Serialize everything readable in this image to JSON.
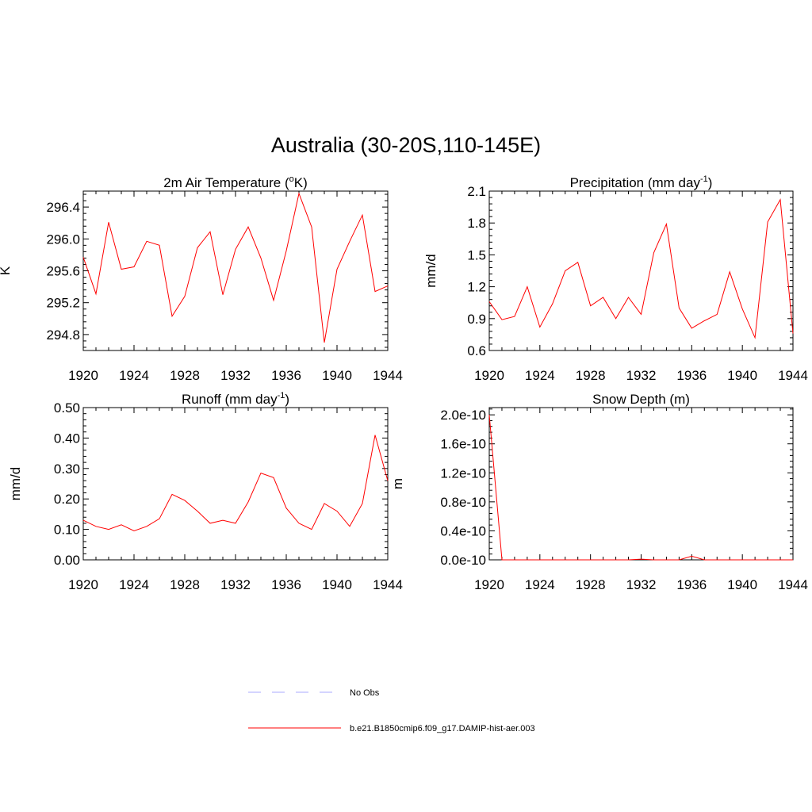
{
  "title": "Australia (30-20S,110-145E)",
  "series_color": "#ff0000",
  "obs_color": "#aaaaff",
  "legend": [
    {
      "label": "No Obs",
      "style": "dashed",
      "color": "#aaaaff"
    },
    {
      "label": "b.e21.B1850cmip6.f09_g17.DAMIP-hist-aer.003",
      "style": "solid",
      "color": "#ff0000"
    }
  ],
  "chart_data": [
    {
      "type": "line",
      "title": "2m Air Temperature (",
      "title_sup": "o",
      "title_end": "K)",
      "ylabel": "K",
      "xlim": [
        1920,
        1944
      ],
      "ylim": [
        294.6,
        296.6
      ],
      "xticks": [
        1920,
        1924,
        1928,
        1932,
        1936,
        1940,
        1944
      ],
      "yticks": [
        294.8,
        295.2,
        295.6,
        296.0,
        296.4
      ],
      "ytick_labels": [
        "294.8",
        "295.2",
        "295.6",
        "296.0",
        "296.4"
      ],
      "x": [
        1920,
        1921,
        1922,
        1923,
        1924,
        1925,
        1926,
        1927,
        1928,
        1929,
        1930,
        1931,
        1932,
        1933,
        1934,
        1935,
        1936,
        1937,
        1938,
        1939,
        1940,
        1941,
        1942,
        1943,
        1944
      ],
      "values": [
        295.77,
        295.31,
        296.21,
        295.62,
        295.65,
        295.97,
        295.92,
        295.03,
        295.28,
        295.89,
        296.09,
        295.3,
        295.87,
        296.15,
        295.76,
        295.23,
        295.85,
        296.57,
        296.15,
        294.7,
        295.62,
        295.97,
        296.3,
        295.34,
        295.41
      ]
    },
    {
      "type": "line",
      "title": "Precipitation (mm day",
      "title_sup": "-1",
      "title_end": ")",
      "ylabel": "mm/d",
      "xlim": [
        1920,
        1944
      ],
      "ylim": [
        0.6,
        2.1
      ],
      "xticks": [
        1920,
        1924,
        1928,
        1932,
        1936,
        1940,
        1944
      ],
      "yticks": [
        0.6,
        0.9,
        1.2,
        1.5,
        1.8,
        2.1
      ],
      "ytick_labels": [
        "0.6",
        "0.9",
        "1.2",
        "1.5",
        "1.8",
        "2.1"
      ],
      "x": [
        1920,
        1921,
        1922,
        1923,
        1924,
        1925,
        1926,
        1927,
        1928,
        1929,
        1930,
        1931,
        1932,
        1933,
        1934,
        1935,
        1936,
        1937,
        1938,
        1939,
        1940,
        1941,
        1942,
        1943,
        1944
      ],
      "values": [
        1.06,
        0.89,
        0.92,
        1.2,
        0.82,
        1.04,
        1.35,
        1.43,
        1.02,
        1.1,
        0.9,
        1.1,
        0.94,
        1.52,
        1.79,
        1.0,
        0.81,
        0.88,
        0.94,
        1.34,
        0.99,
        0.72,
        1.81,
        2.02,
        0.76
      ]
    },
    {
      "type": "line",
      "title": "Runoff (mm day",
      "title_sup": "-1",
      "title_end": ")",
      "ylabel": "mm/d",
      "xlim": [
        1920,
        1944
      ],
      "ylim": [
        0.0,
        0.5
      ],
      "xticks": [
        1920,
        1924,
        1928,
        1932,
        1936,
        1940,
        1944
      ],
      "yticks": [
        0.0,
        0.1,
        0.2,
        0.3,
        0.4,
        0.5
      ],
      "ytick_labels": [
        "0.00",
        "0.10",
        "0.20",
        "0.30",
        "0.40",
        "0.50"
      ],
      "x": [
        1920,
        1921,
        1922,
        1923,
        1924,
        1925,
        1926,
        1927,
        1928,
        1929,
        1930,
        1931,
        1932,
        1933,
        1934,
        1935,
        1936,
        1937,
        1938,
        1939,
        1940,
        1941,
        1942,
        1943,
        1944
      ],
      "values": [
        0.13,
        0.11,
        0.1,
        0.115,
        0.095,
        0.11,
        0.135,
        0.215,
        0.195,
        0.16,
        0.12,
        0.13,
        0.12,
        0.19,
        0.285,
        0.27,
        0.17,
        0.12,
        0.1,
        0.185,
        0.16,
        0.11,
        0.185,
        0.41,
        0.26
      ]
    },
    {
      "type": "line",
      "title": "Snow Depth (m)",
      "title_sup": "",
      "title_end": "",
      "ylabel": "m",
      "xlim": [
        1920,
        1944
      ],
      "ylim": [
        0.0,
        2.1e-10
      ],
      "xticks": [
        1920,
        1924,
        1928,
        1932,
        1936,
        1940,
        1944
      ],
      "yticks": [
        0.0,
        4e-11,
        8e-11,
        1.2e-10,
        1.6e-10,
        2e-10
      ],
      "ytick_labels": [
        "0.0e-10",
        "0.4e-10",
        "0.8e-10",
        "1.2e-10",
        "1.6e-10",
        "2.0e-10"
      ],
      "x": [
        1920,
        1921,
        1922,
        1923,
        1924,
        1925,
        1926,
        1927,
        1928,
        1929,
        1930,
        1931,
        1932,
        1933,
        1934,
        1935,
        1936,
        1937,
        1938,
        1939,
        1940,
        1941,
        1942,
        1943,
        1944
      ],
      "values": [
        2e-10,
        0,
        0,
        0,
        0,
        0,
        0,
        0,
        0,
        0,
        0,
        0,
        1e-12,
        0,
        0,
        0,
        5e-12,
        0,
        0,
        0,
        0,
        0,
        0,
        0,
        0
      ]
    }
  ]
}
